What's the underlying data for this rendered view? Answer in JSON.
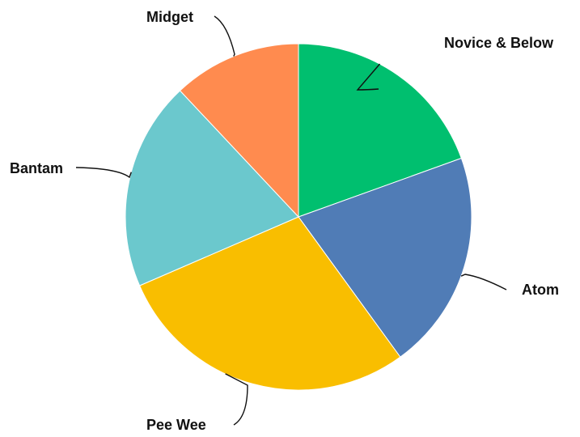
{
  "chart_data": {
    "type": "pie",
    "title": "",
    "legend": "none",
    "start_angle_deg": 0,
    "direction": "clockwise",
    "slices": [
      {
        "label": "Novice & Below",
        "value": 19.5,
        "color": "#00BF6F"
      },
      {
        "label": "Atom",
        "value": 20.5,
        "color": "#507CB6"
      },
      {
        "label": "Pee Wee",
        "value": 28.5,
        "color": "#F9BE00"
      },
      {
        "label": "Bantam",
        "value": 19.5,
        "color": "#6BC8CD"
      },
      {
        "label": "Midget",
        "value": 12.0,
        "color": "#FF8B4F"
      }
    ]
  }
}
